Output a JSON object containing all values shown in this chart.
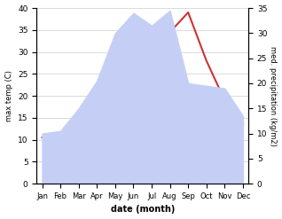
{
  "months": [
    "Jan",
    "Feb",
    "Mar",
    "Apr",
    "May",
    "Jun",
    "Jul",
    "Aug",
    "Sep",
    "Oct",
    "Nov",
    "Dec"
  ],
  "temp": [
    10.5,
    10.5,
    13.0,
    18.0,
    23.0,
    33.0,
    31.5,
    34.5,
    39.0,
    28.0,
    19.0,
    13.5
  ],
  "precip": [
    10.0,
    10.5,
    15.0,
    20.5,
    30.0,
    34.0,
    31.5,
    34.5,
    20.0,
    19.5,
    19.0,
    13.5
  ],
  "temp_color": "#cc3333",
  "precip_fill_color": "#c5cff5",
  "temp_ylim": [
    0,
    40
  ],
  "precip_ylim": [
    0,
    35
  ],
  "xlabel": "date (month)",
  "ylabel_left": "max temp (C)",
  "ylabel_right": "med. precipitation (kg/m2)",
  "bg_color": "#ffffff",
  "grid_color": "#cccccc"
}
